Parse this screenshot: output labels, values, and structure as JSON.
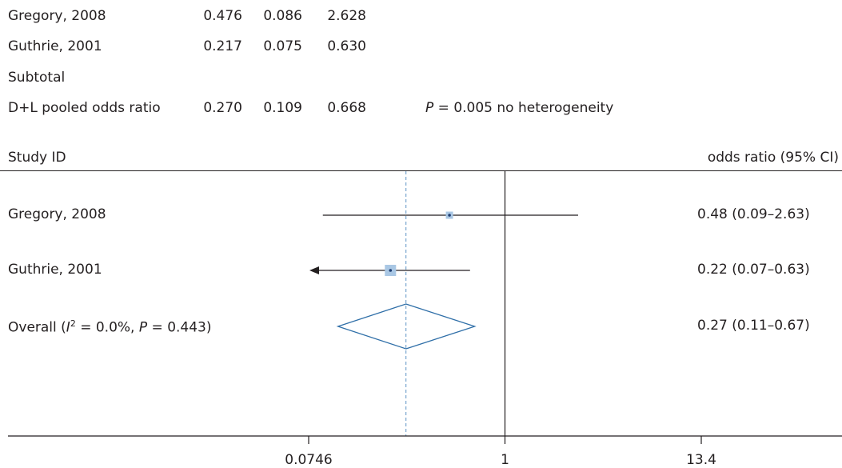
{
  "table": {
    "rows": [
      {
        "label": "Gregory, 2008",
        "or": "0.476",
        "lo": "0.086",
        "hi": "2.628",
        "note": ""
      },
      {
        "label": "Guthrie, 2001",
        "or": "0.217",
        "lo": "0.075",
        "hi": "0.630",
        "note": ""
      },
      {
        "label": "Subtotal",
        "or": "",
        "lo": "",
        "hi": "",
        "note": ""
      },
      {
        "label": "D+L pooled odds ratio",
        "or": "0.270",
        "lo": "0.109",
        "hi": "0.668",
        "note_p": "P",
        "note_rest": " = 0.005 no heterogeneity"
      }
    ]
  },
  "plot": {
    "header_left": "Study ID",
    "header_right": "odds ratio (95% CI)",
    "overall_label_a": "Overall (",
    "overall_label_i": "I",
    "overall_label_sup": "2",
    "overall_label_b": " = 0.0%, ",
    "overall_label_p": "P",
    "overall_label_c": " = 0.443)"
  },
  "chart_data": {
    "type": "forest",
    "xscale": "log",
    "xticks": [
      {
        "value": 0.0746,
        "label": "0.0746"
      },
      {
        "value": 1,
        "label": "1"
      },
      {
        "value": 13.4,
        "label": "13.4"
      }
    ],
    "xlim": [
      0.0746,
      13.4
    ],
    "null_line": 1,
    "pooled_line": 0.27,
    "studies": [
      {
        "label": "Gregory, 2008",
        "or": 0.48,
        "lo": 0.09,
        "hi": 2.63,
        "ci_text": "0.48 (0.09–2.63)",
        "left_arrow": false,
        "weight": 1
      },
      {
        "label": "Guthrie, 2001",
        "or": 0.22,
        "lo": 0.07,
        "hi": 0.63,
        "ci_text": "0.22 (0.07–0.63)",
        "left_arrow": true,
        "weight": 2
      }
    ],
    "overall": {
      "or": 0.27,
      "lo": 0.11,
      "hi": 0.67,
      "ci_text": "0.27 (0.11–0.67)"
    },
    "colors": {
      "marker_fill": "#a9c7e4",
      "marker_dot": "#1f3f73",
      "diamond": "#2f6fa8",
      "pooled_line": "#7aa6cf",
      "axis": "#231f20"
    }
  }
}
